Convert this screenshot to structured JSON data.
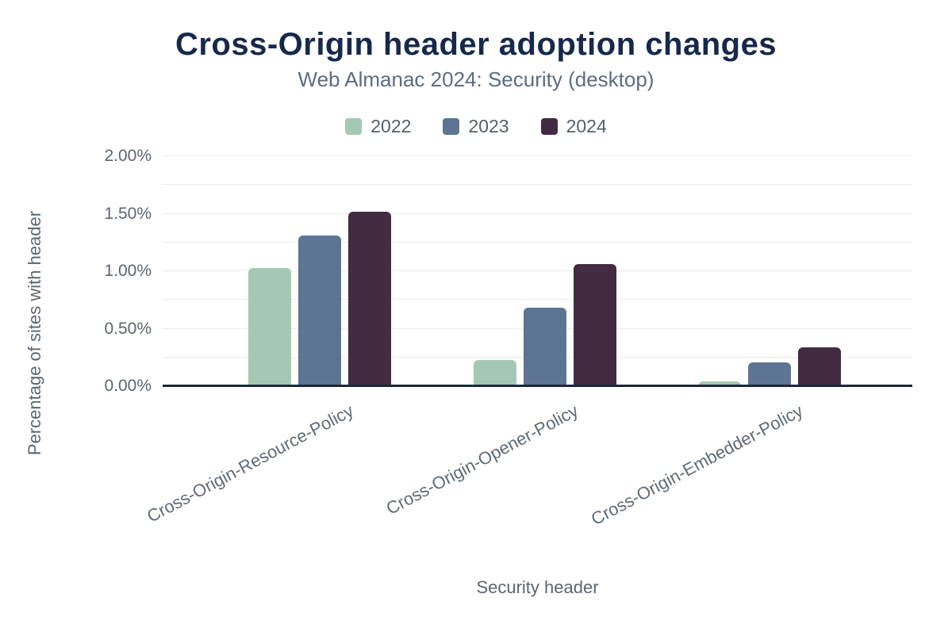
{
  "chart_data": {
    "type": "bar",
    "title": "Cross-Origin header adoption changes",
    "subtitle": "Web Almanac 2024: Security (desktop)",
    "xlabel": "Security header",
    "ylabel": "Percentage of sites with header",
    "categories": [
      "Cross-Origin-Resource-Policy",
      "Cross-Origin-Opener-Policy",
      "Cross-Origin-Embedder-Policy"
    ],
    "series": [
      {
        "name": "2022",
        "color": "#a3c9b4",
        "values": [
          1.03,
          0.23,
          0.04
        ]
      },
      {
        "name": "2023",
        "color": "#5d7492",
        "values": [
          1.31,
          0.68,
          0.21
        ]
      },
      {
        "name": "2024",
        "color": "#432b41",
        "values": [
          1.52,
          1.06,
          0.34
        ]
      }
    ],
    "ylim": [
      0,
      2
    ],
    "yticks": [
      {
        "value": 0.0,
        "label": "0.00%"
      },
      {
        "value": 0.5,
        "label": "0.50%"
      },
      {
        "value": 1.0,
        "label": "1.00%"
      },
      {
        "value": 1.5,
        "label": "1.50%"
      },
      {
        "value": 2.0,
        "label": "2.00%"
      }
    ],
    "grid_interval": 0.25,
    "grid": true,
    "legend_position": "top"
  }
}
